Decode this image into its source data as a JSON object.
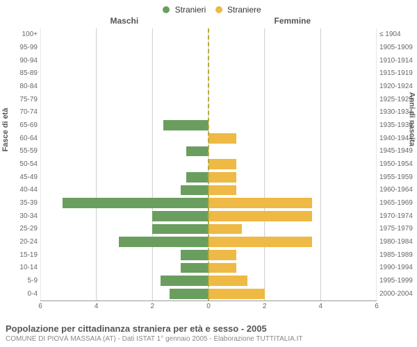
{
  "legend": {
    "male_label": "Stranieri",
    "female_label": "Straniere"
  },
  "col_titles": {
    "left": "Maschi",
    "right": "Femmine"
  },
  "axis_titles": {
    "left": "Fasce di età",
    "right": "Anni di nascita"
  },
  "chart": {
    "type": "population-pyramid",
    "xmax": 6,
    "xtick_step": 2,
    "background_color": "#ffffff",
    "grid_color": "#cccccc",
    "center_line_color": "#b8ab3a",
    "male_color": "#6a9e5f",
    "female_color": "#eeb944",
    "rows": [
      {
        "age": "100+",
        "birth": "≤ 1904",
        "m": 0,
        "f": 0
      },
      {
        "age": "95-99",
        "birth": "1905-1909",
        "m": 0,
        "f": 0
      },
      {
        "age": "90-94",
        "birth": "1910-1914",
        "m": 0,
        "f": 0
      },
      {
        "age": "85-89",
        "birth": "1915-1919",
        "m": 0,
        "f": 0
      },
      {
        "age": "80-84",
        "birth": "1920-1924",
        "m": 0,
        "f": 0
      },
      {
        "age": "75-79",
        "birth": "1925-1929",
        "m": 0,
        "f": 0
      },
      {
        "age": "70-74",
        "birth": "1930-1934",
        "m": 0,
        "f": 0
      },
      {
        "age": "65-69",
        "birth": "1935-1939",
        "m": 1.6,
        "f": 0
      },
      {
        "age": "60-64",
        "birth": "1940-1944",
        "m": 0,
        "f": 1.0
      },
      {
        "age": "55-59",
        "birth": "1945-1949",
        "m": 0.8,
        "f": 0
      },
      {
        "age": "50-54",
        "birth": "1950-1954",
        "m": 0,
        "f": 1.0
      },
      {
        "age": "45-49",
        "birth": "1955-1959",
        "m": 0.8,
        "f": 1.0
      },
      {
        "age": "40-44",
        "birth": "1960-1964",
        "m": 1.0,
        "f": 1.0
      },
      {
        "age": "35-39",
        "birth": "1965-1969",
        "m": 5.2,
        "f": 3.7
      },
      {
        "age": "30-34",
        "birth": "1970-1974",
        "m": 2.0,
        "f": 3.7
      },
      {
        "age": "25-29",
        "birth": "1975-1979",
        "m": 2.0,
        "f": 1.2
      },
      {
        "age": "20-24",
        "birth": "1980-1984",
        "m": 3.2,
        "f": 3.7
      },
      {
        "age": "15-19",
        "birth": "1985-1989",
        "m": 1.0,
        "f": 1.0
      },
      {
        "age": "10-14",
        "birth": "1990-1994",
        "m": 1.0,
        "f": 1.0
      },
      {
        "age": "5-9",
        "birth": "1995-1999",
        "m": 1.7,
        "f": 1.4
      },
      {
        "age": "0-4",
        "birth": "2000-2004",
        "m": 1.4,
        "f": 2.0
      }
    ]
  },
  "footer": {
    "title": "Popolazione per cittadinanza straniera per età e sesso - 2005",
    "subtitle": "COMUNE DI PIOVÀ MASSAIA (AT) - Dati ISTAT 1° gennaio 2005 - Elaborazione TUTTITALIA.IT"
  }
}
